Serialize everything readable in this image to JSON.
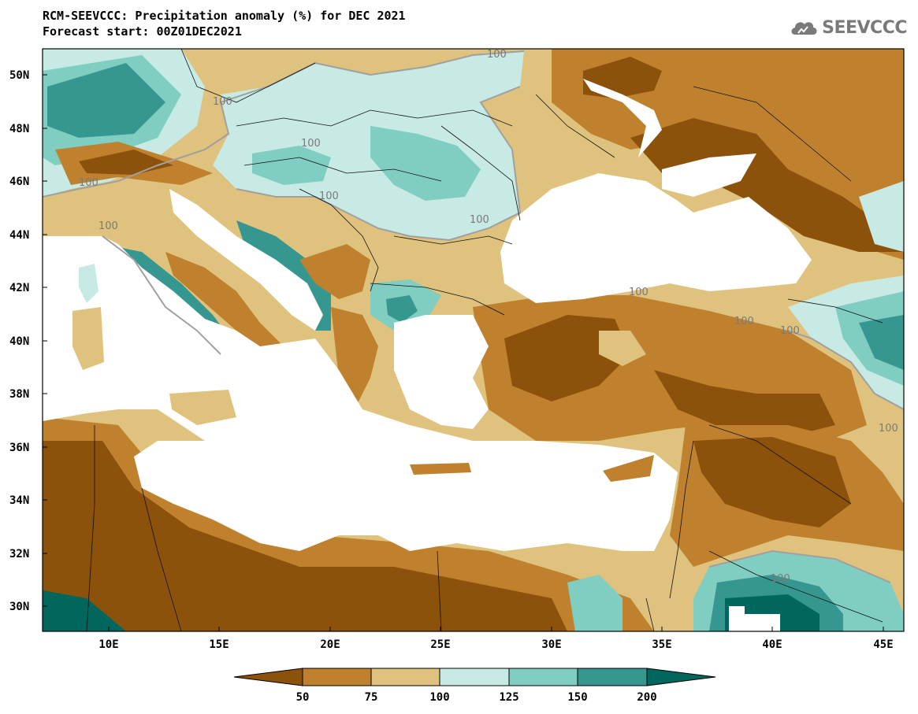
{
  "header": {
    "title_line1": "RCM-SEEVCCC: Precipitation anomaly (%) for DEC 2021",
    "title_line2": "Forecast start: 00Z01DEC2021",
    "logo_text": "SEEVCCC"
  },
  "map": {
    "lat_labels": [
      "50N",
      "48N",
      "46N",
      "44N",
      "42N",
      "40N",
      "38N",
      "36N",
      "34N",
      "32N",
      "30N"
    ],
    "lon_labels": [
      "10E",
      "15E",
      "20E",
      "25E",
      "30E",
      "35E",
      "40E",
      "45E"
    ],
    "contour_label": "100",
    "sea_color": "#ffffff",
    "region_colors": {
      "below_50": "#8c510a",
      "50_75": "#bf812d",
      "75_100": "#dfc27d",
      "100_125": "#c7eae5",
      "125_150": "#80cdc1",
      "150_200": "#35978f",
      "above_200": "#01665e"
    }
  },
  "colorbar": {
    "ticks": [
      "50",
      "75",
      "100",
      "125",
      "150",
      "200"
    ],
    "colors": [
      "#8c510a",
      "#bf812d",
      "#dfc27d",
      "#c7eae5",
      "#80cdc1",
      "#35978f",
      "#01665e"
    ]
  }
}
